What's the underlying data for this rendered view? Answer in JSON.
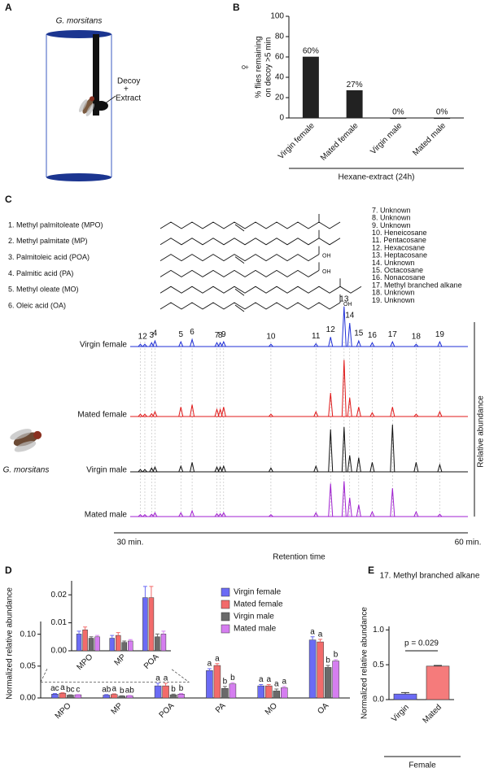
{
  "panel_labels": [
    "A",
    "B",
    "C",
    "D",
    "E"
  ],
  "panel_a": {
    "species": "G. morsitans",
    "decoy_label": [
      "Decoy",
      "+",
      "Extract"
    ]
  },
  "panel_c": {
    "compounds": [
      "1. Methyl palmitoleate (MPO)",
      "2. Methyl palmitate (MP)",
      "3. Palmitoleic acid (POA)",
      "4. Palmitic acid (PA)",
      "5. Methyl oleate (MO)",
      "6. Oleic acid (OA)"
    ],
    "acid_label": "OH",
    "peak_names": [
      "7. Unknown",
      "8. Unknown",
      "9. Unknown",
      "10. Heneicosane",
      "11. Pentacosane",
      "12. Hexacosane",
      "13. Heptacosane",
      "14. Unknown",
      "15. Octacosane",
      "16. Nonacosane",
      "17. Methyl branched alkane",
      "18. Unknown",
      "19. Unknown"
    ],
    "species": "G. morsitans"
  },
  "chart_data": [
    {
      "type": "bar",
      "categories": [
        "Virgin female",
        "Mated female",
        "Virgin male",
        "Mated male"
      ],
      "values": [
        60,
        27,
        0,
        0
      ],
      "value_labels": [
        "60%",
        "27%",
        "0%",
        "0%"
      ],
      "color": "#222222",
      "ylabel": [
        "% flies remaining",
        "on decoy >5 min"
      ],
      "symbol": "♀",
      "xlabel": "Hexane-extract (24h)",
      "ylim": [
        0,
        100
      ],
      "yticks": [
        0,
        20,
        40,
        60,
        80,
        100
      ]
    },
    {
      "type": "chromatogram",
      "peak_labels": [
        "1",
        "2",
        "3",
        "4",
        "5",
        "6",
        "7",
        "8",
        "9",
        "10",
        "11",
        "12",
        "13",
        "14",
        "15",
        "16",
        "17",
        "18",
        "19"
      ],
      "x": [
        30.9,
        31.3,
        31.9,
        32.2,
        34.5,
        35.5,
        37.7,
        38.0,
        38.3,
        42.5,
        46.5,
        47.8,
        49.0,
        49.5,
        50.3,
        51.5,
        53.3,
        55.4,
        57.5
      ],
      "series": [
        {
          "name": "Virgin female",
          "color": "#1f2fd6",
          "values": [
            0.05,
            0.05,
            0.08,
            0.12,
            0.1,
            0.15,
            0.08,
            0.08,
            0.1,
            0.05,
            0.06,
            0.2,
            0.85,
            0.5,
            0.12,
            0.08,
            0.1,
            0.05,
            0.1
          ]
        },
        {
          "name": "Mated female",
          "color": "#e01818",
          "values": [
            0.05,
            0.05,
            0.06,
            0.1,
            0.2,
            0.25,
            0.15,
            0.15,
            0.2,
            0.05,
            0.1,
            0.5,
            1.2,
            0.4,
            0.2,
            0.08,
            0.2,
            0.05,
            0.1
          ]
        },
        {
          "name": "Virgin male",
          "color": "#111111",
          "values": [
            0.05,
            0.05,
            0.08,
            0.1,
            0.12,
            0.2,
            0.1,
            0.1,
            0.12,
            0.08,
            0.12,
            0.9,
            0.95,
            0.35,
            0.3,
            0.2,
            1.0,
            0.2,
            0.15
          ]
        },
        {
          "name": "Mated male",
          "color": "#a020d0",
          "values": [
            0.04,
            0.04,
            0.05,
            0.08,
            0.08,
            0.12,
            0.06,
            0.06,
            0.08,
            0.04,
            0.08,
            0.7,
            0.75,
            0.4,
            0.25,
            0.1,
            0.6,
            0.1,
            0.05
          ]
        }
      ],
      "xlim": [
        30,
        60
      ],
      "xticks": [
        {
          "value": 30,
          "label": "30 min."
        },
        {
          "value": 60,
          "label": "60 min."
        }
      ],
      "xlabel": "Retention time",
      "ylabel": "Relative abundance"
    },
    {
      "type": "grouped_bar",
      "categories": [
        "MPO",
        "MP",
        "POA",
        "PA",
        "MO",
        "OA"
      ],
      "series": [
        {
          "name": "Virgin female",
          "color": "#6b6bf5",
          "values": [
            0.006,
            0.0045,
            0.019,
            0.043,
            0.019,
            0.091
          ],
          "errors": [
            0.001,
            0.001,
            0.004,
            0.003,
            0.002,
            0.005
          ],
          "letters": [
            "ac",
            "ab",
            "a",
            "a",
            "a",
            "a"
          ]
        },
        {
          "name": "Mated female",
          "color": "#f26b6b",
          "values": [
            0.0075,
            0.0055,
            0.019,
            0.051,
            0.019,
            0.088
          ],
          "errors": [
            0.001,
            0.001,
            0.004,
            0.003,
            0.002,
            0.004
          ],
          "letters": [
            "a",
            "a",
            "a",
            "a",
            "a",
            "a"
          ]
        },
        {
          "name": "Virgin male",
          "color": "#6a6a6a",
          "values": [
            0.0045,
            0.003,
            0.005,
            0.015,
            0.011,
            0.048
          ],
          "errors": [
            0.0005,
            0.0005,
            0.001,
            0.003,
            0.003,
            0.003
          ],
          "letters": [
            "bc",
            "b",
            "b",
            "b",
            "a",
            "b"
          ]
        },
        {
          "name": "Mated male",
          "color": "#d57ef0",
          "values": [
            0.005,
            0.0035,
            0.006,
            0.022,
            0.016,
            0.058
          ],
          "errors": [
            0.0005,
            0.0005,
            0.001,
            0.002,
            0.002,
            0.002
          ],
          "letters": [
            "c",
            "ab",
            "b",
            "b",
            "a",
            "b"
          ]
        }
      ],
      "ylabel": "Normalized relative abundance",
      "ylim": [
        0,
        0.12
      ],
      "yticks": [
        {
          "value": 0,
          "label": "0.00"
        },
        {
          "value": 0.05,
          "label": "0.05"
        },
        {
          "value": 0.1,
          "label": "0.10"
        }
      ],
      "inset": {
        "categories": [
          "MPO",
          "MP",
          "POA"
        ],
        "ylim": [
          0,
          0.025
        ],
        "yticks": [
          {
            "value": 0,
            "label": "0.00"
          },
          {
            "value": 0.01,
            "label": "0.01"
          },
          {
            "value": 0.02,
            "label": "0.02"
          }
        ]
      }
    },
    {
      "type": "bar",
      "title": "17. Methyl branched alkane",
      "categories": [
        "Virgin",
        "Mated"
      ],
      "values": [
        0.08,
        0.48
      ],
      "errors": [
        0.02,
        0.01
      ],
      "colors": [
        "#6b6bf5",
        "#f57b7b"
      ],
      "ylabel": "Normalized relative abundance",
      "xlabel": "Female",
      "annotation": "p = 0.029",
      "ylim": [
        0,
        1.05
      ],
      "yticks": [
        {
          "value": 0,
          "label": "0.0"
        },
        0.5,
        {
          "value": 1,
          "label": "1.0"
        }
      ]
    }
  ]
}
